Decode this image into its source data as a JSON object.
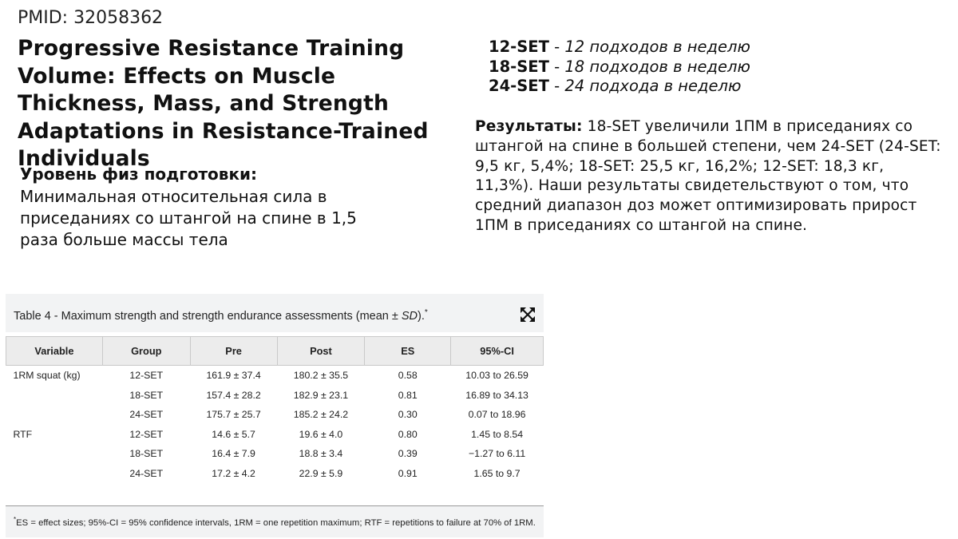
{
  "pmid": "PMID: 32058362",
  "title": "Progressive Resistance Training Volume: Effects on Muscle Thickness, Mass, and Strength Adaptations in Resistance-Trained Individuals",
  "fitness": {
    "heading": "Уровень физ подготовки:",
    "body": "Минимальная относительная сила в приседаниях со штангой на спине в 1,5 раза больше массы тела"
  },
  "groups": [
    {
      "code": "12-SET",
      "sep": " - ",
      "desc": "12 подходов в неделю"
    },
    {
      "code": "18-SET",
      "sep": " - ",
      "desc": "18 подходов в неделю"
    },
    {
      "code": "24-SET",
      "sep": " - ",
      "desc": "24 подхода в неделю"
    }
  ],
  "results": {
    "label": "Результаты:",
    "text": " 18-SET увеличили 1ПМ в приседаниях со штангой на спине в большей степени, чем 24-SET (24-SET: 9,5 кг, 5,4%; 18-SET: 25,5 кг, 16,2%; 12-SET: 18,3 кг, 11,3%). Наши результаты свидетельствуют о том, что средний диапазон доз может оптимизировать прирост 1ПМ в приседаниях со штангой на спине."
  },
  "table": {
    "caption_main": "Table 4 - Maximum strength and strength endurance assessments (mean ± ",
    "caption_sd": "SD",
    "caption_end": ").",
    "caption_mark": "*",
    "expand_icon": "expand-icon",
    "headers": [
      "Variable",
      "Group",
      "Pre",
      "Post",
      "ES",
      "95%-CI"
    ],
    "rows": [
      [
        "1RM squat (kg)",
        "12-SET",
        "161.9 ± 37.4",
        "180.2 ± 35.5",
        "0.58",
        "10.03 to 26.59"
      ],
      [
        "",
        "18-SET",
        "157.4 ± 28.2",
        "182.9 ± 23.1",
        "0.81",
        "16.89 to 34.13"
      ],
      [
        "",
        "24-SET",
        "175.7 ± 25.7",
        "185.2 ± 24.2",
        "0.30",
        "0.07 to 18.96"
      ],
      [
        "RTF",
        "12-SET",
        "14.6 ± 5.7",
        "19.6 ± 4.0",
        "0.80",
        "1.45 to 8.54"
      ],
      [
        "",
        "18-SET",
        "16.4 ± 7.9",
        "18.8 ± 3.4",
        "0.39",
        "−1.27 to 6.11"
      ],
      [
        "",
        "24-SET",
        "17.2 ± 4.2",
        "22.9 ± 5.9",
        "0.91",
        "1.65 to 9.7"
      ]
    ],
    "footnote_mark": "*",
    "footnote": "ES = effect sizes; 95%-CI = 95% confidence intervals, 1RM = one repetition maximum; RTF = repetitions to failure at 70% of 1RM."
  }
}
